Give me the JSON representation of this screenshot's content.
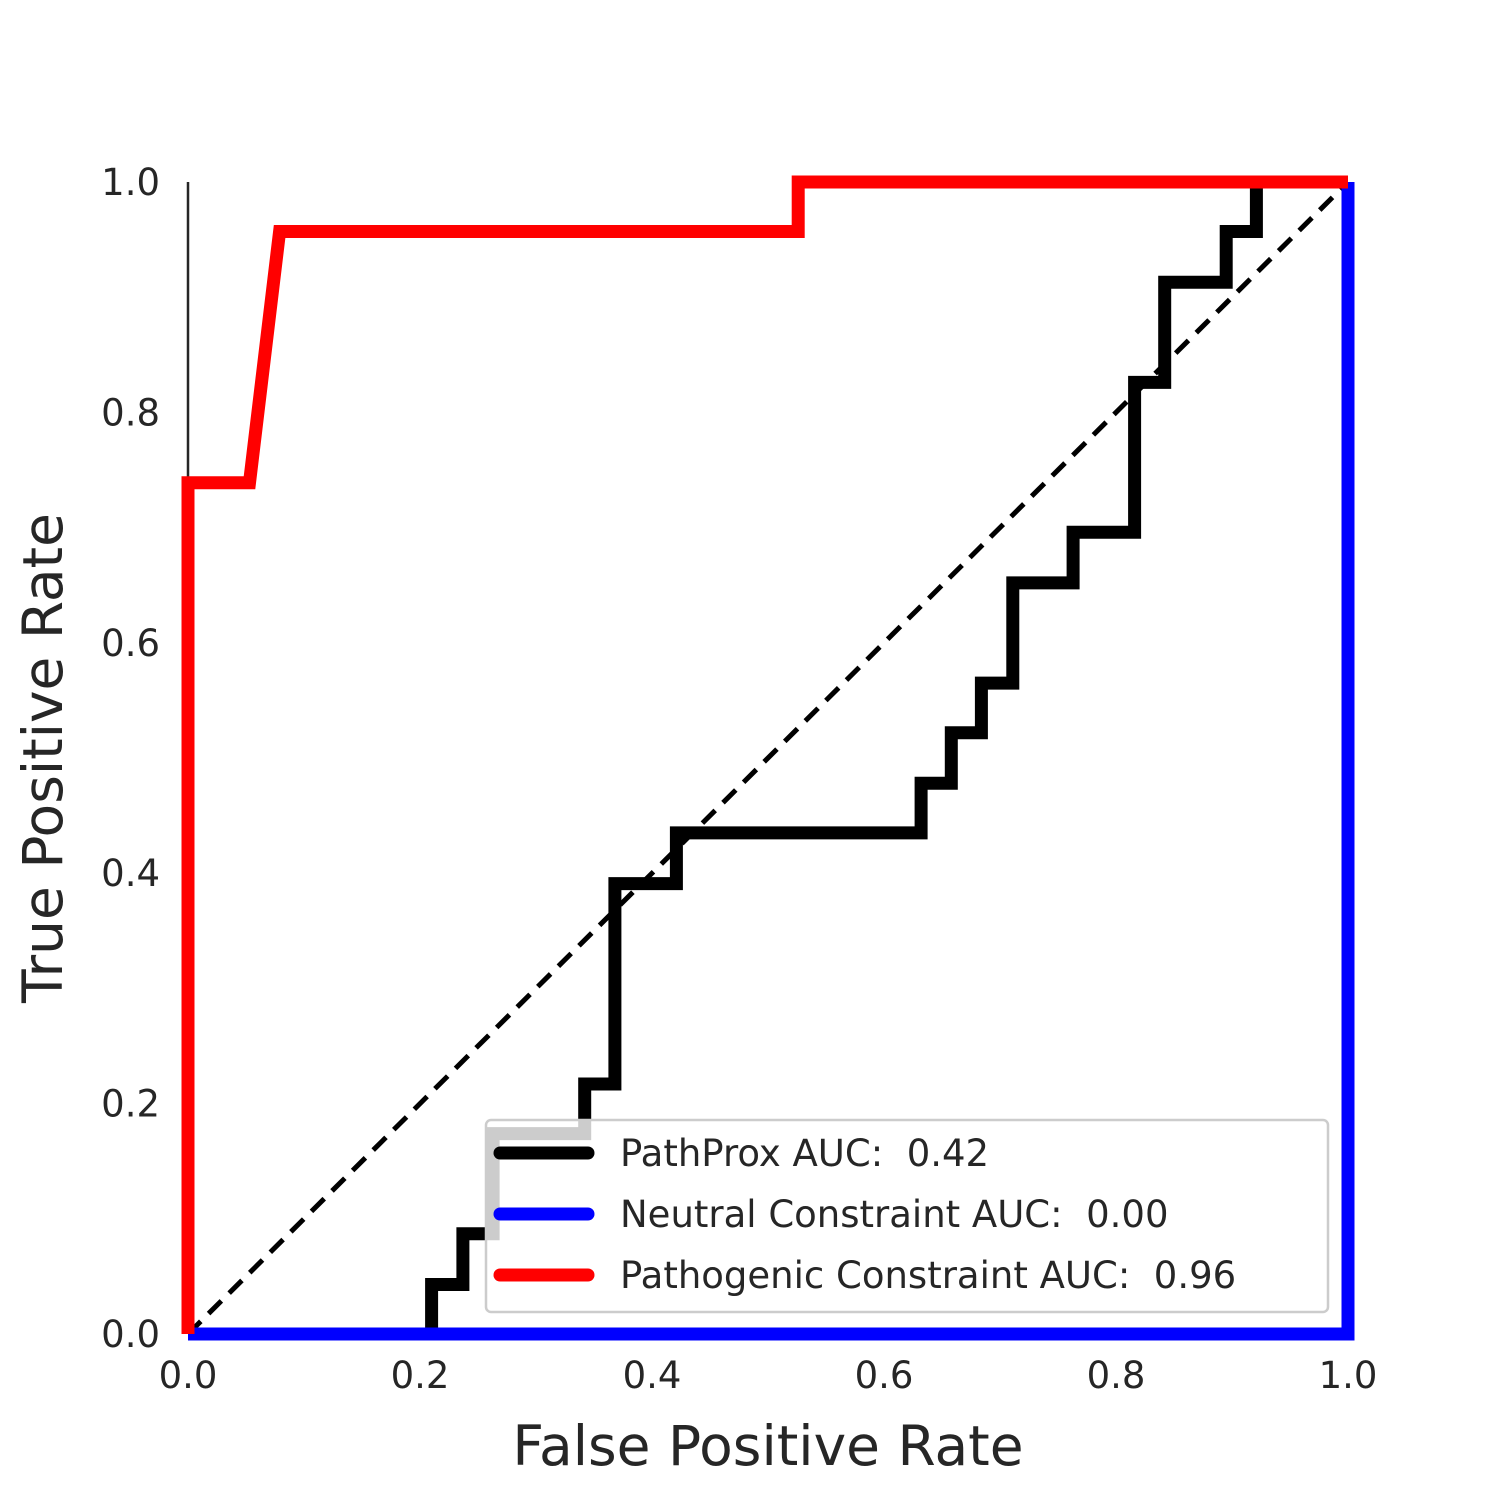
{
  "chart_data": {
    "type": "line",
    "title": "",
    "xlabel": "False Positive Rate",
    "ylabel": "True Positive Rate",
    "xlim": [
      0.0,
      1.0
    ],
    "ylim": [
      0.0,
      1.0
    ],
    "xticks": [
      "0.0",
      "0.2",
      "0.4",
      "0.6",
      "0.8",
      "1.0"
    ],
    "yticks": [
      "0.0",
      "0.2",
      "0.4",
      "0.6",
      "0.8",
      "1.0"
    ],
    "grid": false,
    "legend_position": "lower-right",
    "reference_line": {
      "x": [
        0.0,
        1.0
      ],
      "y": [
        0.0,
        1.0
      ],
      "style": "dashed",
      "color": "#000000"
    },
    "series": [
      {
        "name": "PathProx AUC:  0.42",
        "color": "#000000",
        "x": [
          0.0,
          0.21,
          0.21,
          0.237,
          0.237,
          0.263,
          0.263,
          0.342,
          0.342,
          0.368,
          0.368,
          0.421,
          0.421,
          0.632,
          0.632,
          0.658,
          0.658,
          0.684,
          0.684,
          0.711,
          0.711,
          0.763,
          0.763,
          0.816,
          0.816,
          0.842,
          0.842,
          0.895,
          0.895,
          0.921,
          0.921,
          1.0
        ],
        "y": [
          0.0,
          0.0,
          0.043,
          0.043,
          0.087,
          0.087,
          0.174,
          0.174,
          0.217,
          0.217,
          0.391,
          0.391,
          0.435,
          0.435,
          0.478,
          0.478,
          0.522,
          0.522,
          0.565,
          0.565,
          0.652,
          0.652,
          0.696,
          0.696,
          0.826,
          0.826,
          0.913,
          0.913,
          0.957,
          0.957,
          1.0,
          1.0
        ]
      },
      {
        "name": "Neutral Constraint AUC:  0.00",
        "color": "#0000ff",
        "x": [
          0.0,
          1.0,
          1.0
        ],
        "y": [
          0.0,
          0.0,
          1.0
        ]
      },
      {
        "name": "Pathogenic Constraint AUC:  0.96",
        "color": "#ff0000",
        "x": [
          0.0,
          0.0,
          0.053,
          0.079,
          0.526,
          0.526,
          1.0
        ],
        "y": [
          0.0,
          0.739,
          0.739,
          0.957,
          0.957,
          1.0,
          1.0
        ]
      }
    ]
  }
}
